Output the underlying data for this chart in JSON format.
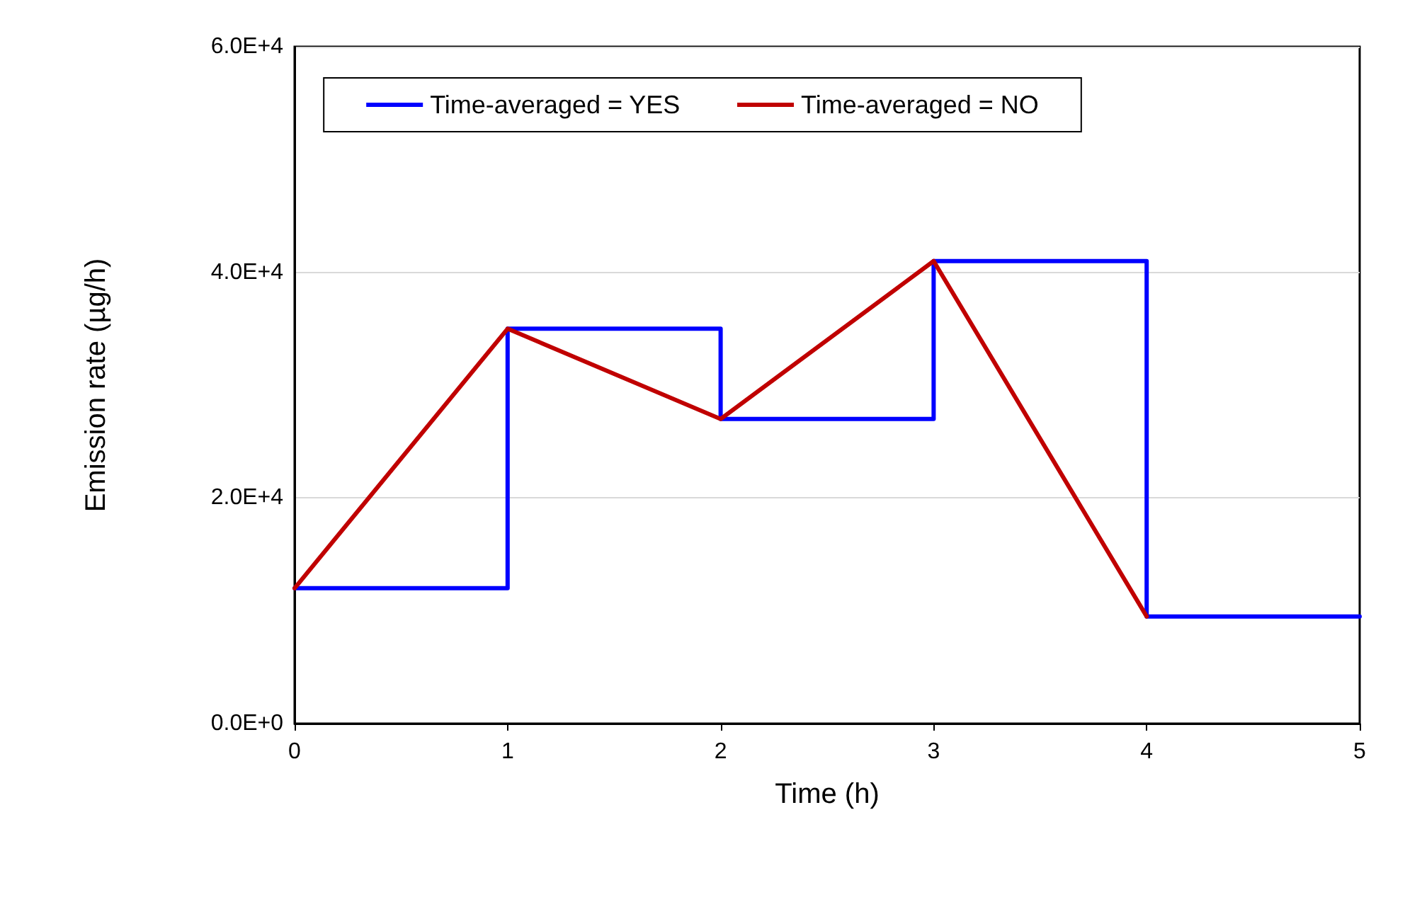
{
  "chart_data": {
    "type": "line",
    "xlabel": "Time (h)",
    "ylabel": "Emission rate (µg/h)",
    "x": [
      0,
      1,
      2,
      3,
      4,
      5
    ],
    "series": [
      {
        "name": "Time-averaged = YES",
        "type": "step",
        "color": "#0000ff",
        "values": [
          12000,
          35000,
          27000,
          41000,
          9500,
          9500
        ]
      },
      {
        "name": "Time-averaged = NO",
        "color": "#c00000",
        "x": [
          0,
          1,
          2,
          3,
          4
        ],
        "values": [
          12000,
          35000,
          27000,
          41000,
          9500
        ]
      }
    ],
    "xlim": [
      0,
      5
    ],
    "xticks": [
      0,
      1,
      2,
      3,
      4,
      5
    ],
    "ylim": [
      0,
      60000
    ],
    "yticks": [
      {
        "value": 0,
        "label": "0.0E+0"
      },
      {
        "value": 20000,
        "label": "2.0E+4"
      },
      {
        "value": 40000,
        "label": "4.0E+4"
      },
      {
        "value": 60000,
        "label": "6.0E+4"
      }
    ],
    "grid": "y",
    "legend": "top",
    "marker": "none",
    "line_style": "solid"
  }
}
